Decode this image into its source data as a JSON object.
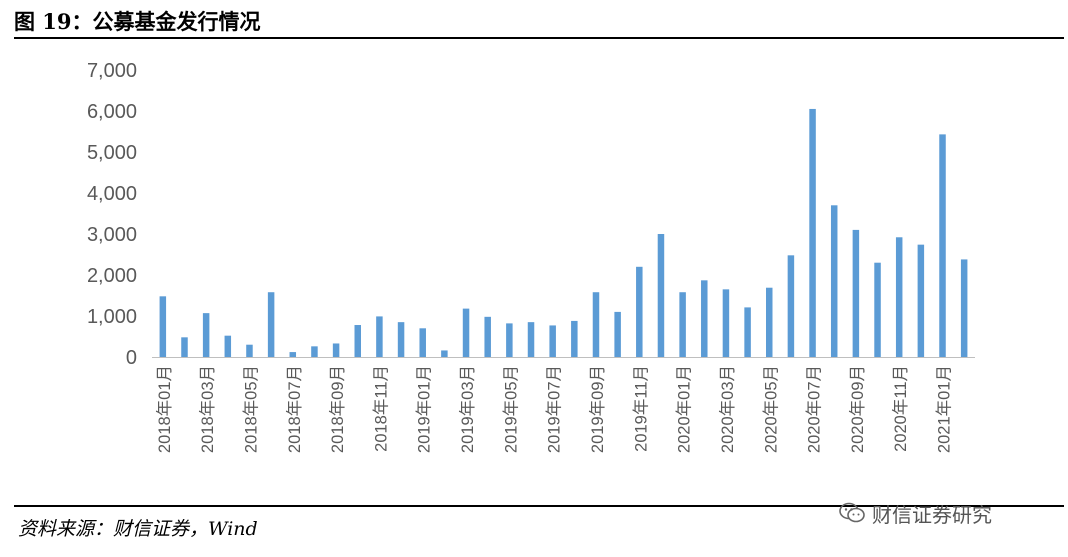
{
  "header": {
    "title": "图 19：公募基金发行情况"
  },
  "footer": {
    "source": "资料来源：财信证券，Wind",
    "watermark_text": "财信证券研究",
    "watermark_icon": "wechat-icon"
  },
  "chart_data": {
    "type": "bar",
    "title": "",
    "xlabel": "",
    "ylabel": "",
    "ylim": [
      0,
      7000
    ],
    "yticks": [
      0,
      1000,
      2000,
      3000,
      4000,
      5000,
      6000,
      7000
    ],
    "ytick_labels": [
      "0",
      "1,000",
      "2,000",
      "3,000",
      "4,000",
      "5,000",
      "6,000",
      "7,000"
    ],
    "grid": false,
    "legend": "none",
    "bar_color": "#5B9BD5",
    "categories": [
      "2018年01月",
      "2018年02月",
      "2018年03月",
      "2018年04月",
      "2018年05月",
      "2018年06月",
      "2018年07月",
      "2018年08月",
      "2018年09月",
      "2018年10月",
      "2018年11月",
      "2018年12月",
      "2019年01月",
      "2019年02月",
      "2019年03月",
      "2019年04月",
      "2019年05月",
      "2019年06月",
      "2019年07月",
      "2019年08月",
      "2019年09月",
      "2019年10月",
      "2019年11月",
      "2019年12月",
      "2020年01月",
      "2020年02月",
      "2020年03月",
      "2020年04月",
      "2020年05月",
      "2020年06月",
      "2020年07月",
      "2020年08月",
      "2020年09月",
      "2020年10月",
      "2020年11月",
      "2020年12月",
      "2021年01月",
      "2021年02月"
    ],
    "tick_labels": [
      "2018年01月",
      "2018年03月",
      "2018年05月",
      "2018年07月",
      "2018年09月",
      "2018年11月",
      "2019年01月",
      "2019年03月",
      "2019年05月",
      "2019年07月",
      "2019年09月",
      "2019年11月",
      "2020年01月",
      "2020年03月",
      "2020年05月",
      "2020年07月",
      "2020年09月",
      "2020年11月",
      "2021年01月"
    ],
    "values": [
      1480,
      480,
      1070,
      520,
      300,
      1580,
      120,
      260,
      330,
      780,
      990,
      850,
      700,
      160,
      1180,
      980,
      820,
      850,
      770,
      880,
      1580,
      1100,
      2200,
      3000,
      1580,
      1870,
      1650,
      1210,
      1690,
      2480,
      6050,
      3700,
      3100,
      2300,
      2920,
      2740,
      5430,
      2380
    ]
  }
}
